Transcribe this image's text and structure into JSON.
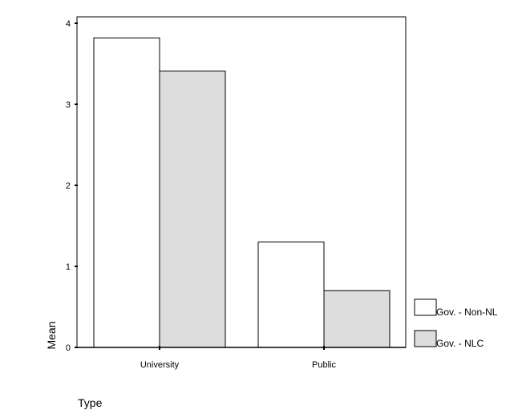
{
  "chart_data": {
    "type": "bar",
    "title": "",
    "xlabel": "Type",
    "ylabel": "Mean",
    "categories": [
      "University",
      "Public"
    ],
    "series": [
      {
        "name": "Gov. - Non-NL",
        "values": [
          3.82,
          1.3
        ],
        "color": "#ffffff"
      },
      {
        "name": "Gov. - NLC",
        "values": [
          3.41,
          0.7
        ],
        "color": "#dddddd"
      }
    ],
    "ylim": [
      0,
      4
    ],
    "yticks": [
      0,
      1,
      2,
      3,
      4
    ],
    "grid": false,
    "legend_position": "bottom-right",
    "border_color": "#000000"
  }
}
